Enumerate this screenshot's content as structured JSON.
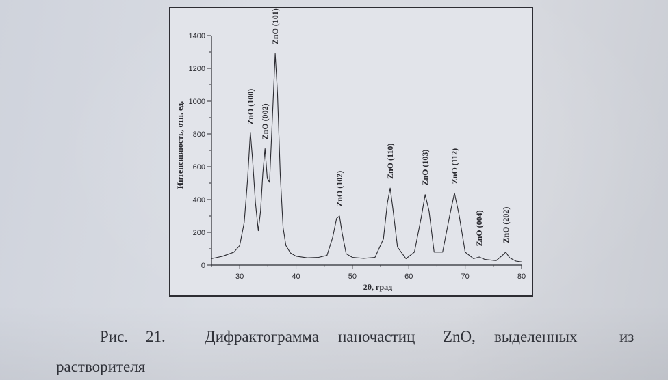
{
  "chart_data": {
    "type": "line",
    "title": "",
    "xlabel": "2θ, град",
    "ylabel": "Интенсивность, отн. ед.",
    "xlim": [
      25,
      80
    ],
    "ylim": [
      0,
      1400
    ],
    "xticks": [
      30,
      40,
      50,
      60,
      70,
      80
    ],
    "yticks": [
      0,
      200,
      400,
      600,
      800,
      1000,
      1200,
      1400
    ],
    "grid": false,
    "series": [
      {
        "x": [
          25,
          27,
          29,
          30,
          30.8,
          31.4,
          31.9,
          32.3,
          32.8,
          33.3,
          33.7,
          34.1,
          34.5,
          34.9,
          35.3,
          35.8,
          36.3,
          36.7,
          37.2,
          37.7,
          38.2,
          39,
          40,
          42,
          44,
          45.5,
          46.5,
          47.2,
          47.7,
          48.2,
          48.9,
          50,
          52,
          54,
          55.5,
          56.2,
          56.7,
          57.2,
          58,
          59.5,
          61,
          62.2,
          62.9,
          63.6,
          64.5,
          66,
          67.3,
          68.1,
          68.9,
          70,
          71.5,
          72.5,
          73.5,
          75.5,
          76.6,
          77.2,
          77.9,
          79,
          80
        ],
        "y": [
          40,
          55,
          80,
          120,
          260,
          520,
          810,
          640,
          380,
          210,
          330,
          560,
          710,
          530,
          505,
          900,
          1290,
          1050,
          550,
          230,
          120,
          75,
          55,
          45,
          48,
          60,
          170,
          285,
          300,
          190,
          70,
          48,
          42,
          48,
          160,
          380,
          470,
          340,
          110,
          40,
          80,
          290,
          430,
          330,
          80,
          80,
          310,
          440,
          310,
          80,
          40,
          50,
          35,
          28,
          60,
          80,
          45,
          25,
          20
        ]
      }
    ],
    "annotations": [
      {
        "label": "ZnO (100)",
        "x": 31.9,
        "y": 830
      },
      {
        "label": "ZnO (002)",
        "x": 34.5,
        "y": 740
      },
      {
        "label": "ZnO (101)",
        "x": 36.3,
        "y": 1320
      },
      {
        "label": "ZnO (102)",
        "x": 47.7,
        "y": 330
      },
      {
        "label": "ZnO (110)",
        "x": 56.7,
        "y": 500
      },
      {
        "label": "ZnO (103)",
        "x": 62.9,
        "y": 460
      },
      {
        "label": "ZnO (112)",
        "x": 68.1,
        "y": 470
      },
      {
        "label": "ZnO (004)",
        "x": 72.5,
        "y": 90
      },
      {
        "label": "ZnO (202)",
        "x": 77.2,
        "y": 110
      }
    ]
  },
  "caption": {
    "fig_label": "Рис.",
    "fig_number": "21.",
    "words": [
      "Дифрактограмма",
      "наночастиц",
      "ZnO,",
      "выделенных",
      "из"
    ],
    "line2": "растворителя"
  },
  "colors": {
    "line": "#2a2a30",
    "text": "#2f3138",
    "frame": "#2d2d33"
  }
}
